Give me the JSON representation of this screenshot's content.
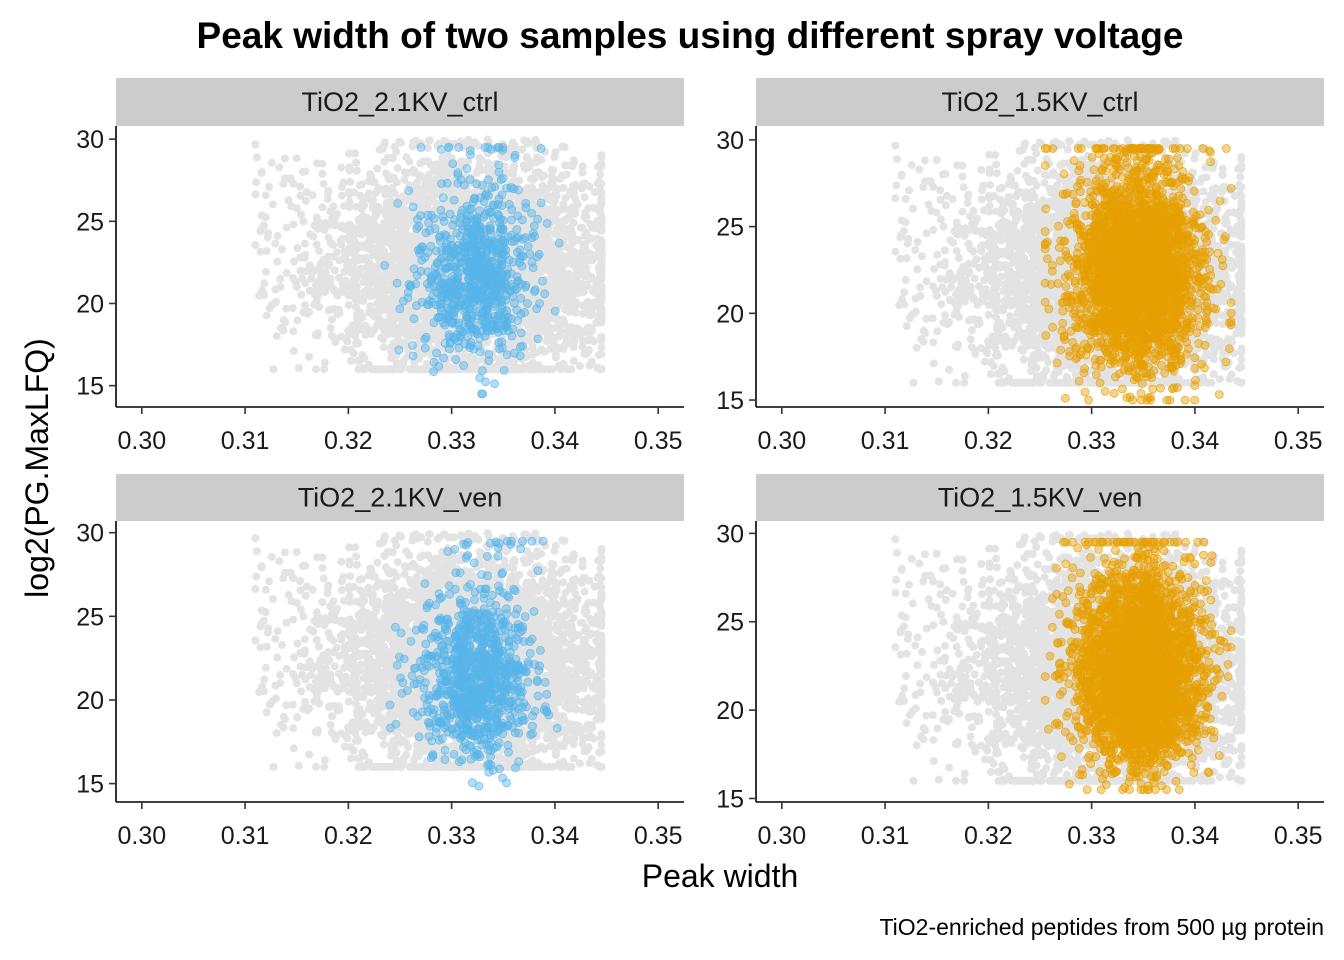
{
  "chart_data": {
    "type": "scatter",
    "title": "Peak width of two samples using different spray voltage",
    "xlabel": "Peak width",
    "ylabel": "log2(PG.MaxLFQ)",
    "caption": "TiO2-enriched peptides from 500 µg protein",
    "xlim": [
      0.2975,
      0.3525
    ],
    "x_ticks": [
      "0.30",
      "0.31",
      "0.32",
      "0.33",
      "0.34",
      "0.35"
    ],
    "y_ticks": [
      "15",
      "20",
      "25",
      "30"
    ],
    "grid": false,
    "legend": "none",
    "background_series": {
      "name": "",
      "color": "#e3e3e3",
      "x_range": [
        0.311,
        0.3445
      ],
      "y_range": [
        16.0,
        30.0
      ],
      "approx_points": 4000
    },
    "panels": [
      {
        "strip": "TiO2_2.1KV_ctrl",
        "color": "#56b4e9",
        "ylim": [
          13.7,
          30.8
        ],
        "x_center": 0.3325,
        "x_spread": 0.0028,
        "y_center": 21.6,
        "y_spread": 2.6,
        "approx_points": 800,
        "x_min": 0.3235,
        "x_max": 0.3425,
        "y_min": 14.5,
        "y_max": 29.5
      },
      {
        "strip": "TiO2_1.5KV_ctrl",
        "color": "#e69f00",
        "ylim": [
          14.6,
          30.8
        ],
        "x_center": 0.3345,
        "x_spread": 0.003,
        "y_center": 22.3,
        "y_spread": 2.6,
        "approx_points": 3000,
        "x_min": 0.3255,
        "x_max": 0.3435,
        "y_min": 15.0,
        "y_max": 29.5
      },
      {
        "strip": "TiO2_2.1KV_ven",
        "color": "#56b4e9",
        "ylim": [
          13.9,
          30.7
        ],
        "x_center": 0.3325,
        "x_spread": 0.0028,
        "y_center": 21.3,
        "y_spread": 2.4,
        "approx_points": 900,
        "x_min": 0.323,
        "x_max": 0.3435,
        "y_min": 14.5,
        "y_max": 29.5
      },
      {
        "strip": "TiO2_1.5KV_ven",
        "color": "#e69f00",
        "ylim": [
          14.8,
          30.7
        ],
        "x_center": 0.3345,
        "x_spread": 0.003,
        "y_center": 22.0,
        "y_spread": 2.6,
        "approx_points": 3000,
        "x_min": 0.3255,
        "x_max": 0.3435,
        "y_min": 15.5,
        "y_max": 29.5
      }
    ]
  }
}
